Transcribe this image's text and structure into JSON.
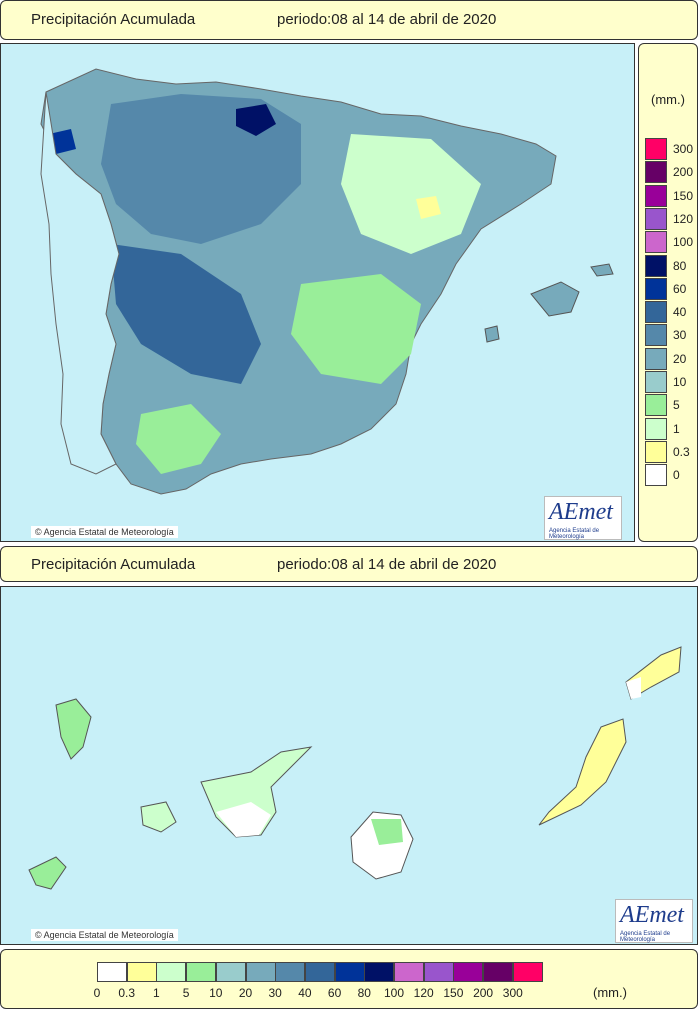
{
  "header_top": {
    "title": "Precipitación Acumulada",
    "period": "periodo:08 al 14 de abril de 2020"
  },
  "header_bottom": {
    "title": "Precipitación Acumulada",
    "period": "periodo:08 al 14 de abril de 2020"
  },
  "legend": {
    "unit": "(mm.)",
    "levels": [
      {
        "label": "0",
        "color": "#ffffff"
      },
      {
        "label": "0.3",
        "color": "#ffff99"
      },
      {
        "label": "1",
        "color": "#ccffcc"
      },
      {
        "label": "5",
        "color": "#99ee99"
      },
      {
        "label": "10",
        "color": "#99cccc"
      },
      {
        "label": "20",
        "color": "#77aabb"
      },
      {
        "label": "30",
        "color": "#5588aa"
      },
      {
        "label": "40",
        "color": "#336699"
      },
      {
        "label": "60",
        "color": "#003399"
      },
      {
        "label": "80",
        "color": "#001166"
      },
      {
        "label": "100",
        "color": "#cc66cc"
      },
      {
        "label": "120",
        "color": "#9955cc"
      },
      {
        "label": "150",
        "color": "#990099"
      },
      {
        "label": "200",
        "color": "#660066"
      },
      {
        "label": "300",
        "color": "#ff0066"
      }
    ]
  },
  "credit_top": "© Agencia Estatal de Meteorología",
  "credit_bottom": "© Agencia Estatal de Meteorología",
  "logo": {
    "text": "AEmet",
    "subtitle": "Agencia Estatal de Meteorología"
  },
  "colors": {
    "sea": "#c8f0f8",
    "bar": "#ffffcc"
  }
}
